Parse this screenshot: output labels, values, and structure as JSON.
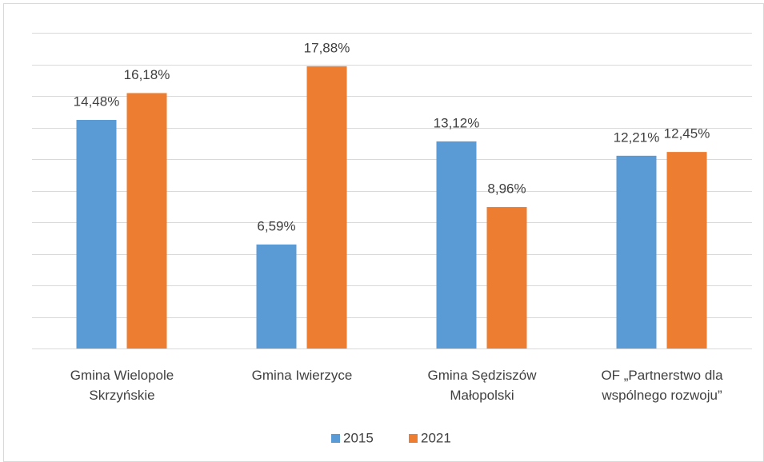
{
  "chart_data": {
    "type": "bar",
    "categories": [
      "Gmina Wielopole Skrzyńskie",
      "Gmina Iwierzyce",
      "Gmina Sędziszów Małopolski",
      "OF „Partnerstwo dla wspólnego rozwoju”"
    ],
    "series": [
      {
        "name": "2015",
        "color": "#5b9bd5",
        "values": [
          14.48,
          6.59,
          13.12,
          12.21
        ],
        "value_labels": [
          "14,48%",
          "6,59%",
          "13,12%",
          "12,21%"
        ]
      },
      {
        "name": "2021",
        "color": "#ed7d31",
        "values": [
          16.18,
          17.88,
          8.96,
          12.45
        ],
        "value_labels": [
          "16,18%",
          "17,88%",
          "8,96%",
          "12,45%"
        ]
      }
    ],
    "ylim": [
      0,
      20
    ],
    "yticks": [
      0,
      2,
      4,
      6,
      8,
      10,
      12,
      14,
      16,
      18,
      20
    ],
    "grid": true,
    "legend": "bottom"
  }
}
